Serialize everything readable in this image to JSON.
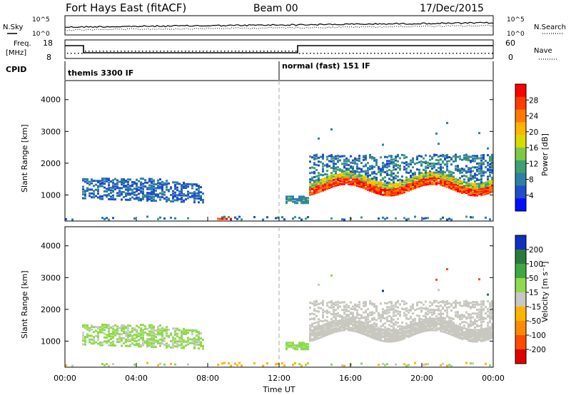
{
  "header": {
    "station": "Fort Hays East (fitACF)",
    "beam": "Beam 00",
    "date": "17/Dec/2015"
  },
  "top_panel": {
    "left_label": "N.Sky",
    "right_label": "N.Search",
    "y_ticks": [
      "10^5",
      "10^0"
    ]
  },
  "freq_panel": {
    "left_label_1": "Freq.",
    "left_label_2": "[MHz]",
    "right_label": "Nave",
    "left_ticks": [
      "18",
      "8"
    ],
    "right_ticks": [
      "60",
      "0"
    ]
  },
  "cpid_panel": {
    "label": "CPID",
    "modes": [
      "themis 3300 IF",
      "normal (fast) 151 IF"
    ]
  },
  "chart_data": [
    {
      "type": "heatmap",
      "title": "",
      "ylabel": "Slant Range [km]",
      "xlabel": "",
      "ylim": [
        180,
        4600
      ],
      "y_ticks": [
        "1000",
        "2000",
        "3000",
        "4000"
      ],
      "colorbar": {
        "label": "Power [dB]",
        "ticks": [
          "28",
          "24",
          "20",
          "16",
          "12",
          "8",
          "4"
        ],
        "colors": [
          "#ff0000",
          "#ff3c00",
          "#ff7a00",
          "#ffb400",
          "#d9d900",
          "#7fc846",
          "#3f9f6f",
          "#2f7fa4",
          "#1e4fc8",
          "#0010ff"
        ]
      }
    },
    {
      "type": "heatmap",
      "title": "",
      "ylabel": "Slant Range [km]",
      "xlabel": "Time UT",
      "ylim": [
        180,
        4600
      ],
      "y_ticks": [
        "1000",
        "2000",
        "3000",
        "4000"
      ],
      "x_ticks": [
        "00:00",
        "04:00",
        "08:00",
        "12:00",
        "16:00",
        "20:00",
        "00:00"
      ],
      "colorbar": {
        "label": "Velocity [m s⁻¹]",
        "ticks": [
          "200",
          "100",
          "50",
          "15",
          "-15",
          "-50",
          "-100",
          "-200"
        ],
        "colors": [
          "#1030c0",
          "#2a7a3a",
          "#3fa73f",
          "#8fd94f",
          "#c8c8c0",
          "#ffb400",
          "#ff8a00",
          "#ff4a00",
          "#e00000"
        ]
      }
    }
  ]
}
